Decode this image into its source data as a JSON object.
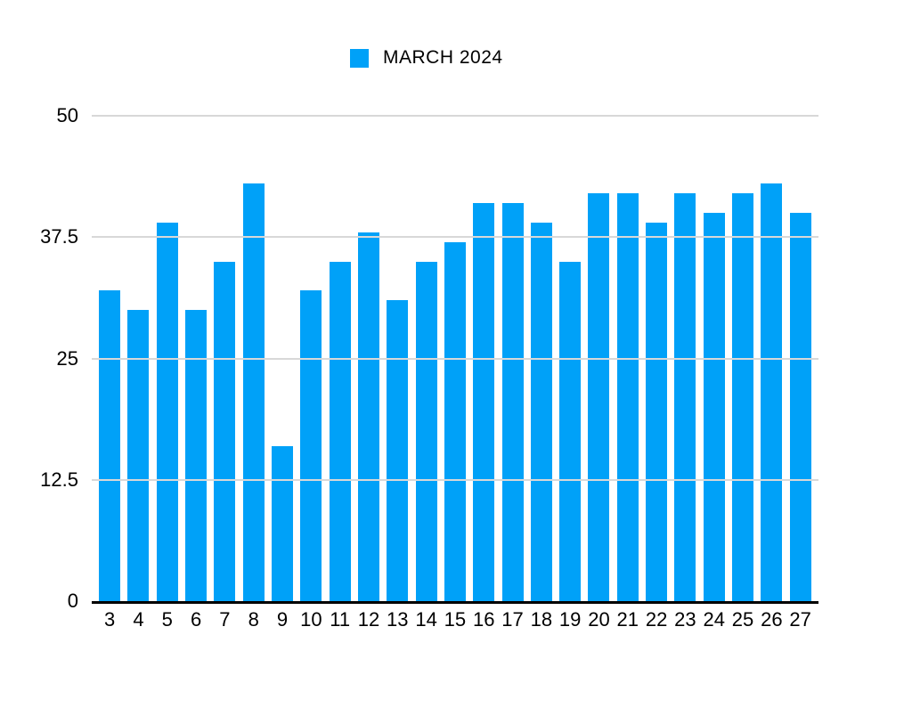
{
  "chart_data": {
    "type": "bar",
    "legend": "MARCH 2024",
    "legend_position": "top",
    "categories": [
      "3",
      "4",
      "5",
      "6",
      "7",
      "8",
      "9",
      "10",
      "11",
      "12",
      "13",
      "14",
      "15",
      "16",
      "17",
      "18",
      "19",
      "20",
      "21",
      "22",
      "23",
      "24",
      "25",
      "26",
      "27"
    ],
    "values": [
      32,
      30,
      39,
      30,
      35,
      43,
      16,
      32,
      35,
      38,
      31,
      35,
      37,
      41,
      41,
      39,
      35,
      42,
      42,
      39,
      42,
      40,
      42,
      43,
      40
    ],
    "xlabel": "",
    "ylabel": "",
    "ylim": [
      0,
      50
    ],
    "yticks": [
      {
        "label": "0",
        "value": 0
      },
      {
        "label": "12.5",
        "value": 12.5
      },
      {
        "label": "25",
        "value": 25
      },
      {
        "label": "37.5",
        "value": 37.5
      },
      {
        "label": "50",
        "value": 50
      }
    ],
    "grid": "horizontal",
    "colors": {
      "bar": "#00A1F8",
      "gridline": "#D8D8D8",
      "axis": "#000000",
      "text": "#000000",
      "background": "#FFFFFF"
    }
  }
}
